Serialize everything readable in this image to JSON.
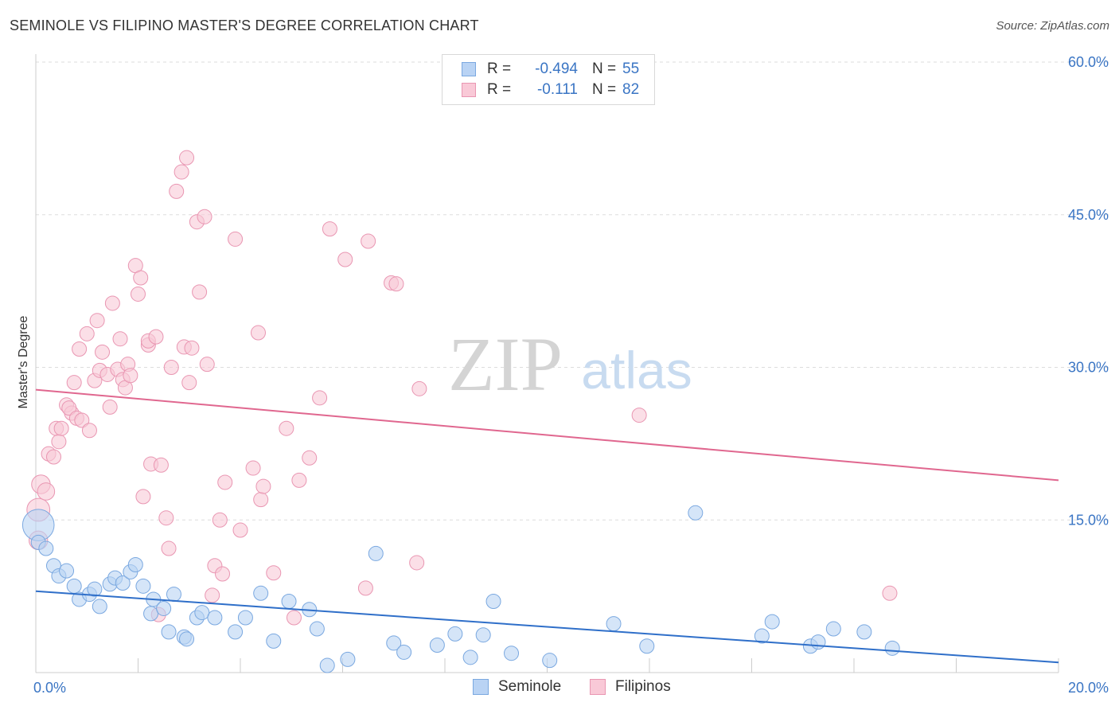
{
  "header": {
    "title": "SEMINOLE VS FILIPINO MASTER'S DEGREE CORRELATION CHART",
    "source": "Source: ZipAtlas.com"
  },
  "watermark": {
    "zip": "ZIP",
    "atlas": "atlas"
  },
  "stats": [
    {
      "r_label": "R =",
      "r_value": "-0.494",
      "n_label": "N =",
      "n_value": "55"
    },
    {
      "r_label": "R =",
      "r_value": "-0.111",
      "n_label": "N =",
      "n_value": "82"
    }
  ],
  "legend": [
    {
      "label": "Seminole"
    },
    {
      "label": "Filipinos"
    }
  ],
  "colors": {
    "seminole_fill": "#b9d3f4",
    "seminole_stroke": "#7aa8e0",
    "seminole_line": "#2f6fc9",
    "filipino_fill": "#f9c9d7",
    "filipino_stroke": "#e996b2",
    "filipino_line": "#e0678f",
    "axis_text": "#3a75c4",
    "grid": "#dddddd"
  },
  "chart_data": {
    "type": "scatter",
    "title": "SEMINOLE VS FILIPINO MASTER'S DEGREE CORRELATION CHART",
    "xlabel": "",
    "ylabel": "Master's Degree",
    "xlim": [
      0,
      20
    ],
    "ylim": [
      0,
      60
    ],
    "x_tick_labels": [
      {
        "value": 0,
        "label": "0.0%"
      },
      {
        "value": 20,
        "label": "20.0%"
      }
    ],
    "y_tick_labels": [
      {
        "value": 15,
        "label": "15.0%"
      },
      {
        "value": 30,
        "label": "30.0%"
      },
      {
        "value": 45,
        "label": "45.0%"
      },
      {
        "value": 60,
        "label": "60.0%"
      }
    ],
    "series": [
      {
        "name": "Seminole",
        "trend": [
          [
            0,
            8.0
          ],
          [
            20,
            1.0
          ]
        ],
        "points": [
          [
            0.05,
            14.5,
            2.2
          ],
          [
            0.05,
            12.8,
            1
          ],
          [
            0.2,
            12.2,
            1
          ],
          [
            0.35,
            10.5,
            1
          ],
          [
            0.45,
            9.5,
            1
          ],
          [
            0.6,
            10.0,
            1
          ],
          [
            0.75,
            8.5,
            1
          ],
          [
            0.85,
            7.2,
            1
          ],
          [
            1.05,
            7.7,
            1
          ],
          [
            1.15,
            8.2,
            1
          ],
          [
            1.25,
            6.5,
            1
          ],
          [
            1.45,
            8.7,
            1
          ],
          [
            1.55,
            9.3,
            1
          ],
          [
            1.7,
            8.8,
            1
          ],
          [
            1.85,
            9.9,
            1
          ],
          [
            1.95,
            10.6,
            1
          ],
          [
            2.1,
            8.5,
            1
          ],
          [
            2.3,
            7.2,
            1
          ],
          [
            2.25,
            5.8,
            1
          ],
          [
            2.5,
            6.3,
            1
          ],
          [
            2.7,
            7.7,
            1
          ],
          [
            2.6,
            4.0,
            1
          ],
          [
            2.9,
            3.5,
            1
          ],
          [
            2.95,
            3.3,
            1
          ],
          [
            3.15,
            5.4,
            1
          ],
          [
            3.25,
            5.9,
            1
          ],
          [
            3.5,
            5.4,
            1
          ],
          [
            3.9,
            4.0,
            1
          ],
          [
            4.1,
            5.4,
            1
          ],
          [
            4.4,
            7.8,
            1
          ],
          [
            4.65,
            3.1,
            1
          ],
          [
            4.95,
            7.0,
            1
          ],
          [
            5.35,
            6.2,
            1
          ],
          [
            5.5,
            4.3,
            1
          ],
          [
            5.7,
            0.7,
            1
          ],
          [
            6.1,
            1.3,
            1
          ],
          [
            6.65,
            11.7,
            1
          ],
          [
            7.0,
            2.9,
            1
          ],
          [
            7.2,
            2.0,
            1
          ],
          [
            7.85,
            2.7,
            1
          ],
          [
            8.2,
            3.8,
            1
          ],
          [
            8.5,
            1.5,
            1
          ],
          [
            8.75,
            3.7,
            1
          ],
          [
            8.95,
            7.0,
            1
          ],
          [
            9.3,
            1.9,
            1
          ],
          [
            10.05,
            1.2,
            1
          ],
          [
            11.3,
            4.8,
            1
          ],
          [
            11.95,
            2.6,
            1
          ],
          [
            12.9,
            15.7,
            1
          ],
          [
            14.2,
            3.6,
            1
          ],
          [
            14.4,
            5.0,
            1
          ],
          [
            15.15,
            2.6,
            1
          ],
          [
            15.3,
            3.0,
            1
          ],
          [
            15.6,
            4.3,
            1
          ],
          [
            16.2,
            4.0,
            1
          ],
          [
            16.75,
            2.4,
            1
          ]
        ]
      },
      {
        "name": "Filipinos",
        "trend": [
          [
            0,
            27.8
          ],
          [
            20,
            18.9
          ]
        ],
        "points": [
          [
            0.05,
            16.0,
            1.6
          ],
          [
            0.1,
            18.5,
            1.3
          ],
          [
            0.2,
            17.8,
            1.2
          ],
          [
            0.05,
            13.0,
            1.3
          ],
          [
            0.25,
            21.5,
            1
          ],
          [
            0.35,
            21.2,
            1
          ],
          [
            0.4,
            24.0,
            1
          ],
          [
            0.45,
            22.7,
            1
          ],
          [
            0.5,
            24.0,
            1
          ],
          [
            0.6,
            26.3,
            1
          ],
          [
            0.7,
            25.5,
            1
          ],
          [
            0.65,
            26.0,
            1
          ],
          [
            0.75,
            28.5,
            1
          ],
          [
            0.8,
            25.0,
            1
          ],
          [
            0.85,
            31.8,
            1
          ],
          [
            0.9,
            24.8,
            1
          ],
          [
            1.0,
            33.3,
            1
          ],
          [
            1.05,
            23.8,
            1
          ],
          [
            1.15,
            28.7,
            1
          ],
          [
            1.2,
            34.6,
            1
          ],
          [
            1.25,
            29.7,
            1
          ],
          [
            1.3,
            31.5,
            1
          ],
          [
            1.4,
            29.3,
            1
          ],
          [
            1.45,
            26.1,
            1
          ],
          [
            1.5,
            36.3,
            1
          ],
          [
            1.6,
            29.8,
            1
          ],
          [
            1.65,
            32.8,
            1
          ],
          [
            1.7,
            28.8,
            1
          ],
          [
            1.75,
            28.0,
            1
          ],
          [
            1.8,
            30.3,
            1
          ],
          [
            1.85,
            29.2,
            1
          ],
          [
            1.95,
            40.0,
            1
          ],
          [
            2.0,
            37.2,
            1
          ],
          [
            2.05,
            38.8,
            1
          ],
          [
            2.1,
            17.3,
            1
          ],
          [
            2.2,
            32.2,
            1
          ],
          [
            2.2,
            32.6,
            1
          ],
          [
            2.25,
            20.5,
            1
          ],
          [
            2.35,
            33.0,
            1
          ],
          [
            2.4,
            5.7,
            1
          ],
          [
            2.45,
            20.4,
            1
          ],
          [
            2.55,
            15.2,
            1
          ],
          [
            2.6,
            12.2,
            1
          ],
          [
            2.65,
            30.0,
            1
          ],
          [
            2.75,
            47.3,
            1
          ],
          [
            2.85,
            49.2,
            1
          ],
          [
            2.9,
            32.0,
            1
          ],
          [
            2.95,
            50.6,
            1
          ],
          [
            3.0,
            28.5,
            1
          ],
          [
            3.05,
            31.9,
            1
          ],
          [
            3.15,
            44.3,
            1
          ],
          [
            3.2,
            37.4,
            1
          ],
          [
            3.3,
            44.8,
            1
          ],
          [
            3.35,
            30.3,
            1
          ],
          [
            3.45,
            7.6,
            1
          ],
          [
            3.5,
            10.5,
            1
          ],
          [
            3.6,
            15.0,
            1
          ],
          [
            3.65,
            9.7,
            1
          ],
          [
            3.7,
            18.7,
            1
          ],
          [
            3.9,
            42.6,
            1
          ],
          [
            4.0,
            14.0,
            1
          ],
          [
            4.25,
            20.1,
            1
          ],
          [
            4.35,
            33.4,
            1
          ],
          [
            4.4,
            17.0,
            1
          ],
          [
            4.45,
            18.3,
            1
          ],
          [
            4.65,
            9.8,
            1
          ],
          [
            4.9,
            24.0,
            1
          ],
          [
            5.05,
            5.4,
            1
          ],
          [
            5.15,
            18.9,
            1
          ],
          [
            5.35,
            21.1,
            1
          ],
          [
            5.55,
            27.0,
            1
          ],
          [
            5.75,
            43.6,
            1
          ],
          [
            6.05,
            40.6,
            1
          ],
          [
            6.45,
            8.3,
            1
          ],
          [
            6.5,
            42.4,
            1
          ],
          [
            6.95,
            38.3,
            1
          ],
          [
            7.05,
            38.2,
            1
          ],
          [
            7.45,
            10.8,
            1
          ],
          [
            7.5,
            27.9,
            1
          ],
          [
            11.8,
            25.3,
            1
          ],
          [
            16.7,
            7.8,
            1
          ]
        ]
      }
    ]
  }
}
